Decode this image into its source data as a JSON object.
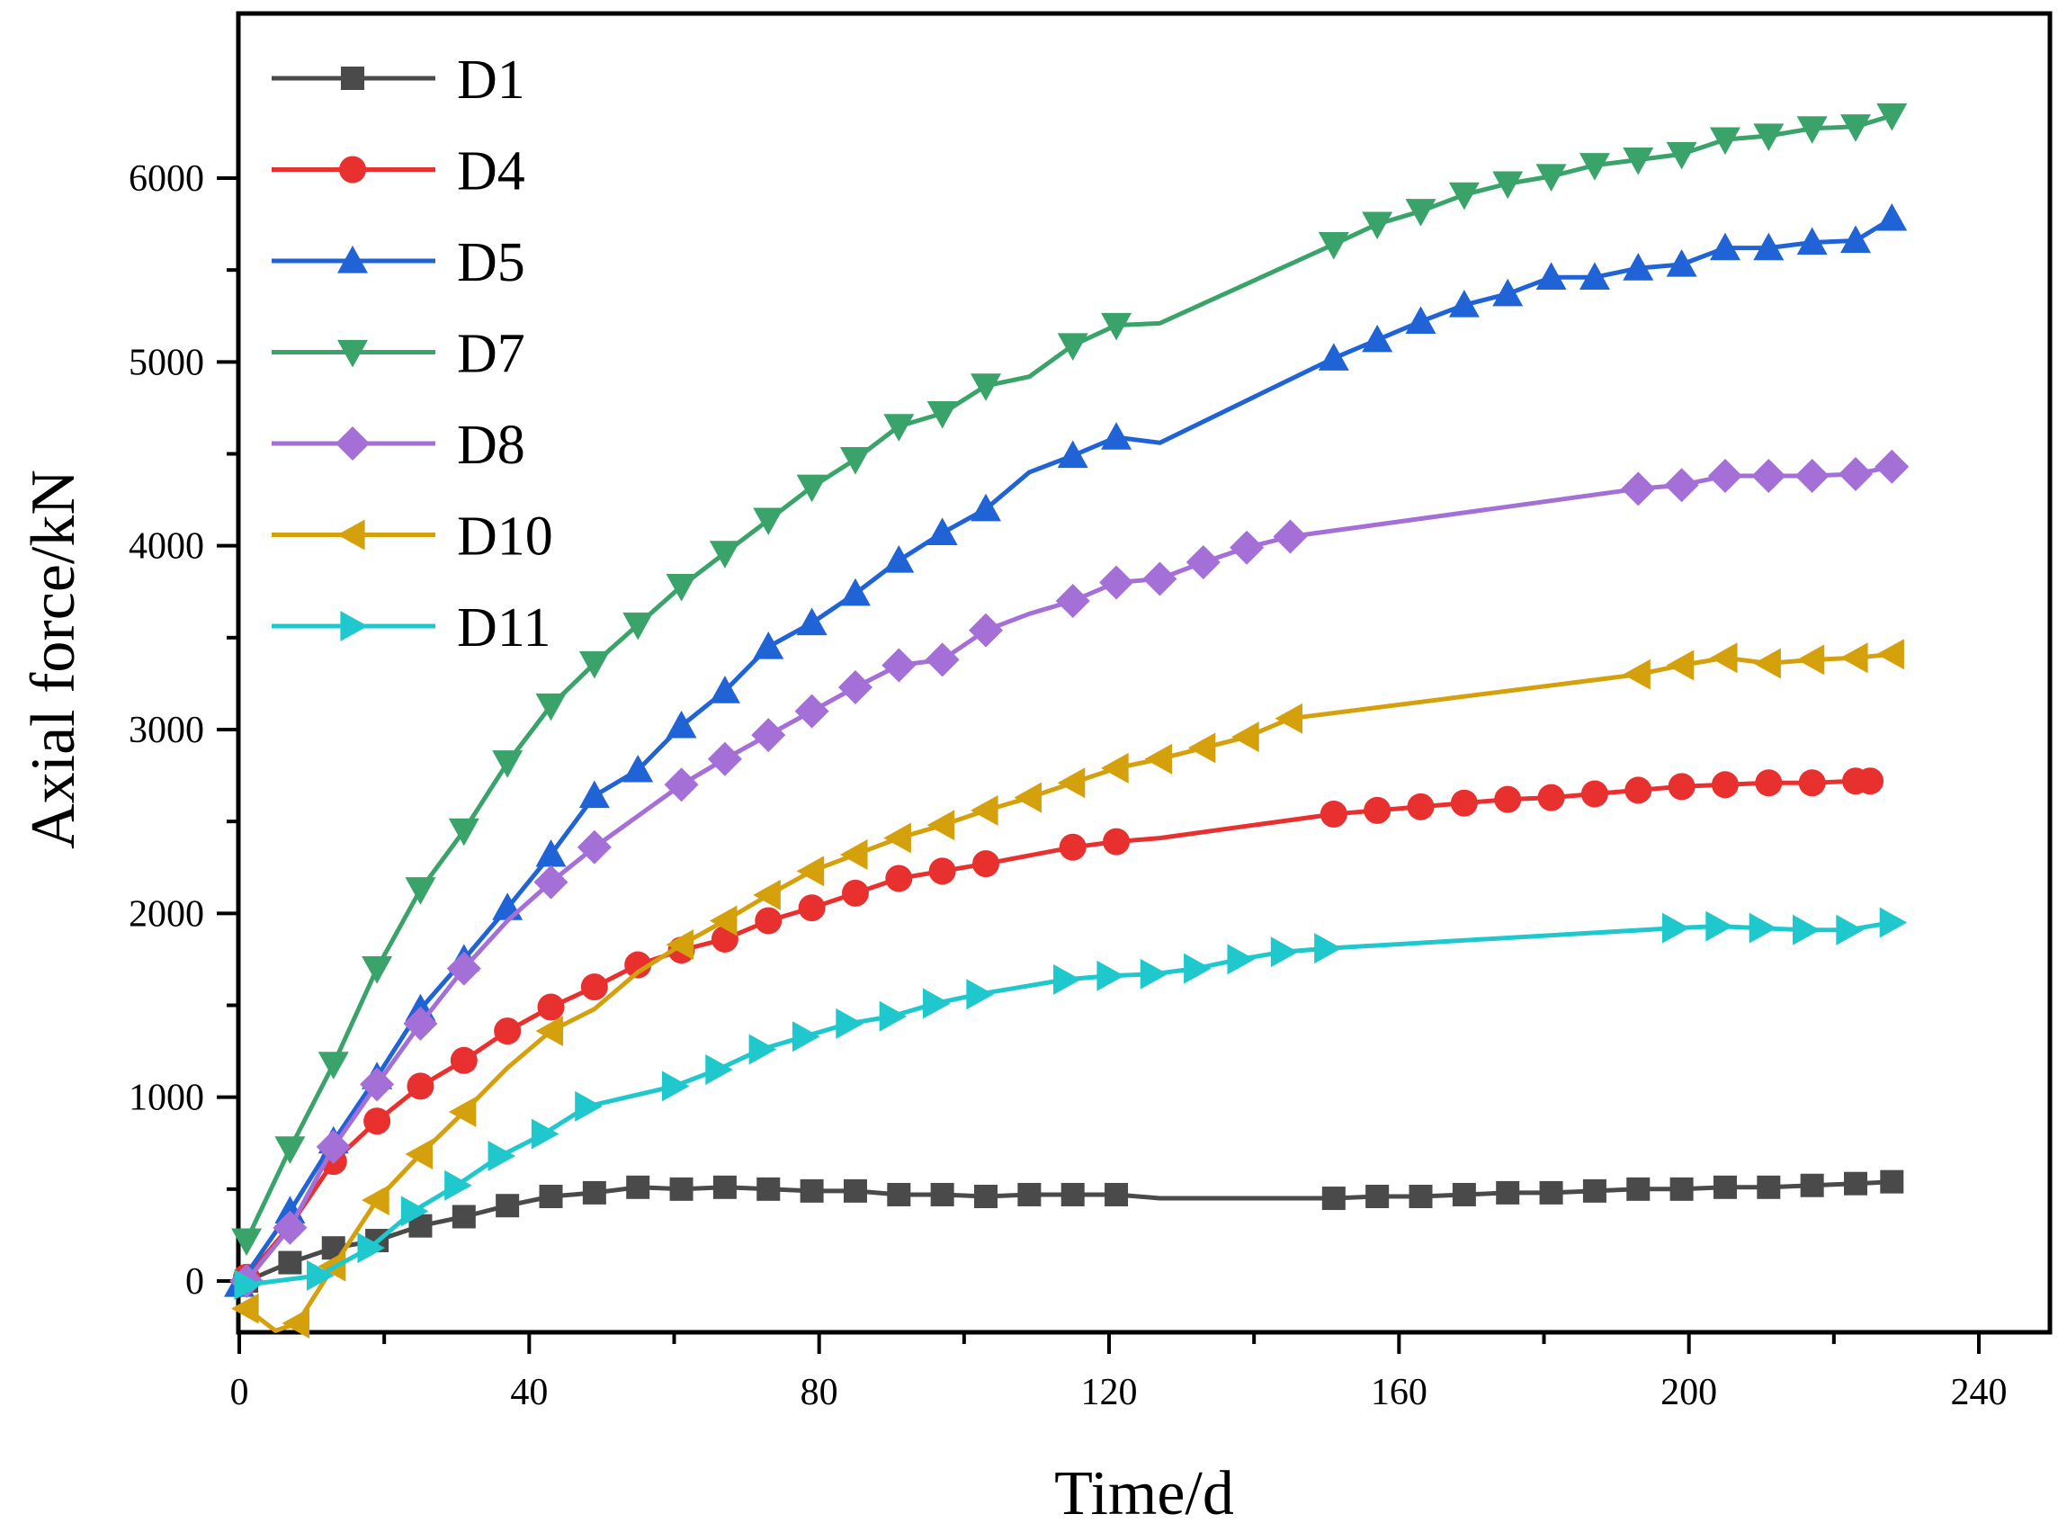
{
  "chart_data": {
    "type": "line",
    "xlabel": "Time/d",
    "ylabel": "Axial force/kN",
    "xlim": [
      0,
      240
    ],
    "ylim": [
      -300,
      6900
    ],
    "xticks": [
      0,
      40,
      80,
      120,
      160,
      200,
      240
    ],
    "yticks": [
      0,
      1000,
      2000,
      3000,
      4000,
      5000,
      6000
    ],
    "grid": false,
    "legend_position": "top-left",
    "series": [
      {
        "name": "D1",
        "color": "#4a4a4a",
        "marker": "square",
        "x": [
          1,
          7,
          13,
          19,
          25,
          31,
          37,
          43,
          49,
          55,
          61,
          67,
          73,
          79,
          85,
          91,
          97,
          103,
          109,
          115,
          121,
          127,
          151,
          157,
          163,
          169,
          175,
          181,
          187,
          193,
          199,
          205,
          211,
          217,
          223,
          228
        ],
        "y": [
          0,
          100,
          180,
          220,
          300,
          350,
          410,
          460,
          480,
          510,
          500,
          510,
          500,
          490,
          490,
          470,
          470,
          460,
          470,
          470,
          470,
          450,
          450,
          460,
          460,
          470,
          480,
          480,
          490,
          500,
          500,
          510,
          510,
          520,
          530,
          540
        ],
        "marker_x": [
          1,
          7,
          13,
          19,
          25,
          31,
          37,
          43,
          49,
          55,
          61,
          67,
          73,
          79,
          85,
          91,
          97,
          103,
          109,
          115,
          121,
          151,
          157,
          163,
          169,
          175,
          181,
          187,
          193,
          199,
          205,
          211,
          217,
          223,
          228
        ]
      },
      {
        "name": "D4",
        "color": "#e8302f",
        "marker": "circle",
        "x": [
          1,
          7,
          13,
          19,
          25,
          31,
          37,
          43,
          49,
          55,
          61,
          67,
          73,
          79,
          85,
          91,
          97,
          103,
          115,
          121,
          127,
          151,
          157,
          163,
          169,
          175,
          181,
          187,
          193,
          199,
          205,
          211,
          217,
          223,
          225
        ],
        "y": [
          20,
          300,
          650,
          870,
          1060,
          1200,
          1360,
          1490,
          1600,
          1720,
          1800,
          1860,
          1960,
          2030,
          2110,
          2190,
          2230,
          2270,
          2360,
          2390,
          2410,
          2540,
          2560,
          2580,
          2600,
          2620,
          2630,
          2650,
          2670,
          2690,
          2700,
          2710,
          2710,
          2720,
          2720
        ],
        "marker_x": [
          1,
          7,
          13,
          19,
          25,
          31,
          37,
          43,
          49,
          55,
          61,
          67,
          73,
          79,
          85,
          91,
          97,
          103,
          115,
          121,
          151,
          157,
          163,
          169,
          175,
          181,
          187,
          193,
          199,
          205,
          211,
          217,
          223,
          225
        ]
      },
      {
        "name": "D5",
        "color": "#1f63d6",
        "marker": "triangle-up",
        "x": [
          0,
          7,
          13,
          19,
          25,
          31,
          37,
          43,
          49,
          55,
          61,
          67,
          73,
          79,
          85,
          91,
          97,
          103,
          109,
          115,
          121,
          127,
          151,
          157,
          163,
          169,
          175,
          181,
          187,
          193,
          199,
          205,
          211,
          217,
          223,
          228
        ],
        "y": [
          -20,
          380,
          760,
          1110,
          1480,
          1750,
          2030,
          2320,
          2640,
          2780,
          3020,
          3210,
          3450,
          3580,
          3740,
          3920,
          4070,
          4200,
          4400,
          4490,
          4590,
          4560,
          5020,
          5120,
          5220,
          5310,
          5370,
          5460,
          5460,
          5510,
          5530,
          5620,
          5620,
          5650,
          5660,
          5780
        ],
        "marker_x": [
          0,
          7,
          13,
          19,
          25,
          31,
          37,
          43,
          49,
          55,
          61,
          67,
          73,
          79,
          85,
          91,
          97,
          103,
          115,
          121,
          151,
          157,
          163,
          169,
          175,
          181,
          187,
          193,
          199,
          205,
          211,
          217,
          223,
          228
        ]
      },
      {
        "name": "D7",
        "color": "#3aa36a",
        "marker": "triangle-down",
        "x": [
          1,
          7,
          13,
          19,
          25,
          31,
          37,
          43,
          49,
          55,
          61,
          67,
          73,
          79,
          85,
          91,
          97,
          103,
          109,
          115,
          121,
          127,
          151,
          157,
          163,
          169,
          175,
          181,
          187,
          193,
          199,
          205,
          211,
          217,
          223,
          228
        ],
        "y": [
          220,
          720,
          1180,
          1700,
          2130,
          2450,
          2820,
          3130,
          3360,
          3570,
          3780,
          3960,
          4140,
          4320,
          4470,
          4650,
          4720,
          4870,
          4920,
          5090,
          5200,
          5210,
          5640,
          5750,
          5820,
          5910,
          5970,
          6010,
          6070,
          6100,
          6130,
          6210,
          6230,
          6270,
          6280,
          6340
        ],
        "marker_x": [
          1,
          7,
          13,
          19,
          25,
          31,
          37,
          43,
          49,
          55,
          61,
          67,
          73,
          79,
          85,
          91,
          97,
          103,
          115,
          121,
          151,
          157,
          163,
          169,
          175,
          181,
          187,
          193,
          199,
          205,
          211,
          217,
          223,
          228
        ]
      },
      {
        "name": "D8",
        "color": "#a46fd6",
        "marker": "diamond",
        "x": [
          1,
          7,
          13,
          19,
          25,
          31,
          37,
          43,
          49,
          61,
          67,
          73,
          79,
          85,
          91,
          97,
          103,
          109,
          115,
          121,
          127,
          133,
          139,
          145,
          193,
          199,
          205,
          211,
          217,
          223,
          228
        ],
        "y": [
          0,
          290,
          730,
          1070,
          1400,
          1700,
          1960,
          2170,
          2360,
          2700,
          2840,
          2970,
          3100,
          3230,
          3350,
          3380,
          3540,
          3630,
          3700,
          3800,
          3820,
          3910,
          3990,
          4050,
          4310,
          4330,
          4380,
          4380,
          4380,
          4390,
          4430
        ],
        "marker_x": [
          1,
          7,
          13,
          19,
          25,
          31,
          43,
          49,
          61,
          67,
          73,
          79,
          85,
          91,
          97,
          103,
          115,
          121,
          127,
          133,
          139,
          145,
          193,
          199,
          205,
          211,
          217,
          223,
          228
        ]
      },
      {
        "name": "D10",
        "color": "#d4a00c",
        "marker": "triangle-left",
        "x": [
          1,
          5,
          8,
          13,
          19,
          25,
          31,
          37,
          43,
          49,
          55,
          61,
          67,
          73,
          79,
          85,
          91,
          97,
          103,
          109,
          115,
          121,
          127,
          133,
          139,
          145,
          193,
          199,
          205,
          211,
          217,
          223,
          228
        ],
        "y": [
          -150,
          -270,
          -230,
          80,
          440,
          690,
          920,
          1160,
          1360,
          1480,
          1680,
          1830,
          1960,
          2100,
          2230,
          2320,
          2410,
          2480,
          2560,
          2630,
          2710,
          2790,
          2840,
          2900,
          2960,
          3060,
          3300,
          3350,
          3390,
          3360,
          3380,
          3390,
          3410
        ],
        "marker_x": [
          1,
          8,
          13,
          19,
          25,
          31,
          43,
          61,
          67,
          73,
          79,
          85,
          91,
          97,
          103,
          109,
          115,
          121,
          127,
          133,
          139,
          145,
          193,
          199,
          205,
          211,
          217,
          223,
          228
        ]
      },
      {
        "name": "D11",
        "color": "#1ec8cc",
        "marker": "triangle-right",
        "x": [
          1,
          11,
          18,
          24,
          30,
          36,
          42,
          48,
          60,
          66,
          72,
          78,
          84,
          90,
          96,
          102,
          114,
          120,
          126,
          132,
          138,
          144,
          150,
          198,
          204,
          210,
          216,
          222,
          228
        ],
        "y": [
          -20,
          30,
          180,
          380,
          520,
          680,
          800,
          950,
          1060,
          1150,
          1260,
          1330,
          1400,
          1440,
          1510,
          1560,
          1640,
          1660,
          1670,
          1700,
          1750,
          1790,
          1810,
          1920,
          1930,
          1920,
          1910,
          1910,
          1950
        ],
        "marker_x": [
          1,
          11,
          18,
          24,
          30,
          36,
          42,
          48,
          60,
          66,
          72,
          78,
          84,
          90,
          96,
          102,
          114,
          120,
          126,
          132,
          138,
          144,
          150,
          198,
          204,
          210,
          216,
          222,
          228
        ]
      }
    ]
  }
}
